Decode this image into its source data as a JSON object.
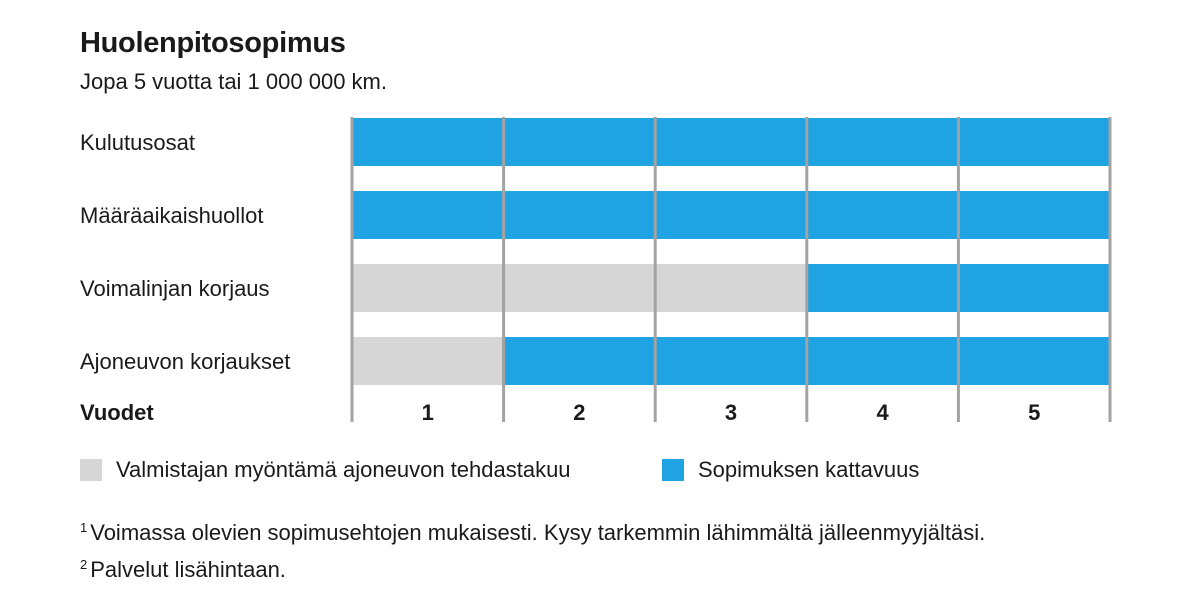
{
  "title": "Huolenpitosopimus",
  "subtitle": "Jopa 5 vuotta tai 1 000 000 km.",
  "chart_data": {
    "type": "bar",
    "orientation": "horizontal-stacked",
    "xlabel": "Vuodet",
    "x_ticks": [
      "1",
      "2",
      "3",
      "4",
      "5"
    ],
    "xlim": [
      0,
      5
    ],
    "categories": [
      "Kulutusosat",
      "Määräaikaishuollot",
      "Voimalinjan korjaus",
      "Ajoneuvon korjaukset"
    ],
    "series": [
      {
        "name": "Valmistajan myöntämä ajoneuvon tehdastakuu",
        "color": "#d6d6d6",
        "values": [
          0,
          0,
          3,
          1
        ]
      },
      {
        "name": "Sopimuksen kattavuus",
        "color": "#1fa3e2",
        "values": [
          5,
          5,
          2,
          4
        ]
      }
    ],
    "grid": true,
    "legend_position": "bottom"
  },
  "footnotes": [
    {
      "marker": "1",
      "text": "Voimassa olevien sopimusehtojen mukaisesti. Kysy tarkemmin lähimmältä jälleenmyyjältäsi."
    },
    {
      "marker": "2",
      "text": "Palvelut lisähintaan."
    }
  ]
}
